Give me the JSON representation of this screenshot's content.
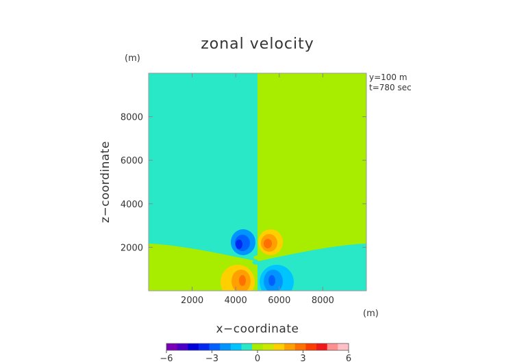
{
  "chart_data": {
    "type": "heatmap",
    "title": "zonal velocity",
    "xlabel": "x−coordinate",
    "ylabel": "z−coordinate",
    "x_unit": "(m)",
    "y_unit": "(m)",
    "annotations": [
      "y=100 m",
      "t=780 sec"
    ],
    "xlim": [
      0,
      10000
    ],
    "ylim": [
      0,
      10000
    ],
    "x_ticks": [
      2000,
      4000,
      6000,
      8000
    ],
    "y_ticks": [
      2000,
      4000,
      6000,
      8000
    ],
    "x_tick_labels": [
      "2000",
      "4000",
      "6000",
      "8000"
    ],
    "y_tick_labels": [
      "2000",
      "4000",
      "6000",
      "8000"
    ],
    "colorbar": {
      "min": -6,
      "max": 6,
      "tick_values": [
        -6,
        -3,
        0,
        3,
        6
      ],
      "tick_labels": [
        "−6",
        "−3",
        "0",
        "3",
        "6"
      ],
      "colors": [
        "#7a00b8",
        "#4a00c8",
        "#0000d8",
        "#0028f0",
        "#0060ff",
        "#0094ff",
        "#00c4ff",
        "#28e8c8",
        "#a8ec00",
        "#cce800",
        "#ffd000",
        "#ffa000",
        "#ff7000",
        "#ff3c00",
        "#f01818",
        "#ff9090",
        "#ffc0c8"
      ]
    },
    "regions": [
      {
        "name": "background-left",
        "x_range": [
          0,
          5000
        ],
        "z_range": [
          1800,
          10000
        ],
        "level": "-0.5 to 0",
        "color": "#28e8c8"
      },
      {
        "name": "background-right",
        "x_range": [
          5000,
          10000
        ],
        "z_range": [
          1800,
          10000
        ],
        "level": "0 to 0.5",
        "color": "#a8ec00"
      },
      {
        "name": "lower-left-layer",
        "x_range": [
          0,
          5000
        ],
        "z_range": [
          0,
          2200
        ],
        "level": "0 to 0.5",
        "color": "#a8ec00"
      },
      {
        "name": "lower-right-layer",
        "x_range": [
          5000,
          10000
        ],
        "z_range": [
          0,
          2200
        ],
        "level": "-0.5 to 0",
        "color": "#28e8c8"
      },
      {
        "name": "vortex-upper-left",
        "center": [
          4400,
          2200
        ],
        "peak": -4,
        "color": "#0094ff"
      },
      {
        "name": "vortex-upper-right",
        "center": [
          5600,
          2200
        ],
        "peak": 4,
        "color": "#ffa000"
      },
      {
        "name": "vortex-lower-left",
        "center": [
          4300,
          500
        ],
        "peak": 4,
        "color": "#ffa000"
      },
      {
        "name": "vortex-lower-right",
        "center": [
          5700,
          500
        ],
        "peak": -4,
        "color": "#0094ff"
      }
    ]
  }
}
